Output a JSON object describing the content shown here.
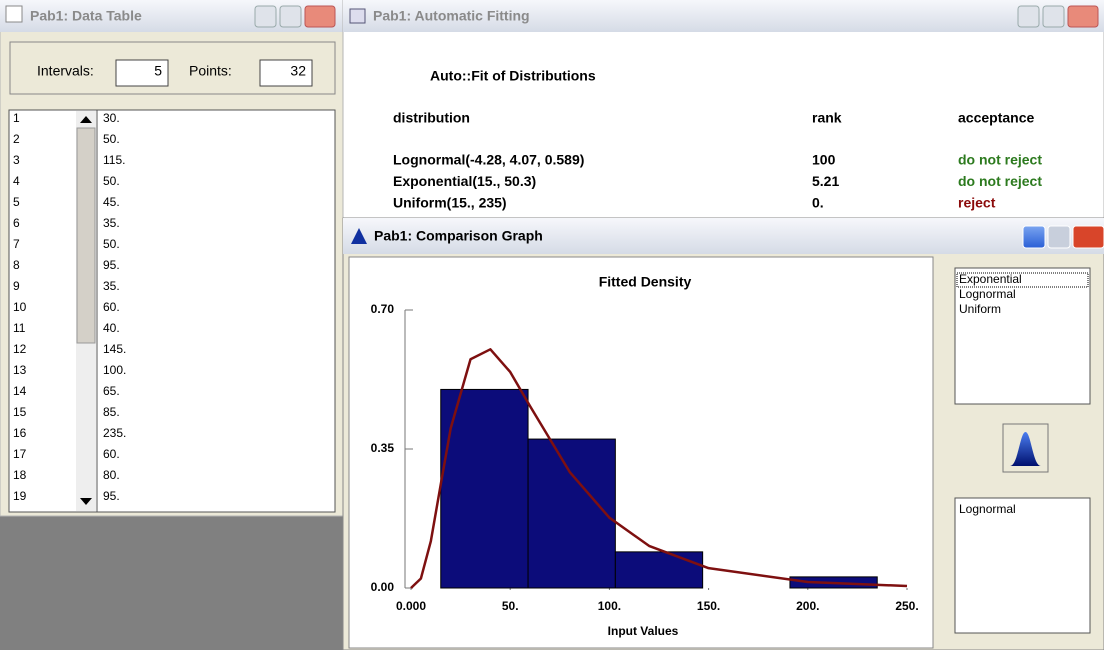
{
  "data_table": {
    "title": "Pab1: Data Table",
    "intervals_label": "Intervals:",
    "intervals": 5,
    "points_label": "Points:",
    "points": 32,
    "rows": [
      [
        "1",
        "30."
      ],
      [
        "2",
        "50."
      ],
      [
        "3",
        "115."
      ],
      [
        "4",
        "50."
      ],
      [
        "5",
        "45."
      ],
      [
        "6",
        "35."
      ],
      [
        "7",
        "50."
      ],
      [
        "8",
        "95."
      ],
      [
        "9",
        "35."
      ],
      [
        "10",
        "60."
      ],
      [
        "11",
        "40."
      ],
      [
        "12",
        "145."
      ],
      [
        "13",
        "100."
      ],
      [
        "14",
        "65."
      ],
      [
        "15",
        "85."
      ],
      [
        "16",
        "235."
      ],
      [
        "17",
        "60."
      ],
      [
        "18",
        "80."
      ],
      [
        "19",
        "95."
      ]
    ]
  },
  "auto_fit": {
    "title": "Pab1: Automatic Fitting",
    "heading": "Auto::Fit of Distributions",
    "columns": [
      "distribution",
      "rank",
      "acceptance"
    ],
    "rows": [
      {
        "distribution": "Lognormal(-4.28, 4.07, 0.589)",
        "rank": "100",
        "acceptance": "do not reject",
        "color": "#2c7a1e"
      },
      {
        "distribution": "Exponential(15., 50.3)",
        "rank": "5.21",
        "acceptance": "do not reject",
        "color": "#2c7a1e"
      },
      {
        "distribution": "Uniform(15., 235)",
        "rank": "0.",
        "acceptance": "reject",
        "color": "#8b0a0a"
      }
    ]
  },
  "comparison": {
    "title": "Pab1: Comparison Graph",
    "list": [
      "Exponential",
      "Lognormal",
      "Uniform"
    ],
    "selected": [
      "Lognormal"
    ]
  },
  "chart_data": {
    "type": "histogram",
    "title": "Fitted Density",
    "x_label": "Input Values",
    "bins": [
      15,
      59,
      103,
      147,
      191,
      235
    ],
    "values": [
      0.5,
      0.375,
      0.091,
      0,
      0.028
    ],
    "color": "#0c0c7a",
    "series": [
      {
        "name": "Lognormal",
        "color": "#7e1010",
        "x": [
          0,
          5,
          10,
          15,
          20,
          30,
          40,
          50,
          60,
          80,
          100,
          120,
          150,
          200,
          250
        ],
        "values": [
          0,
          0.024,
          0.118,
          0.261,
          0.402,
          0.576,
          0.601,
          0.544,
          0.458,
          0.292,
          0.177,
          0.106,
          0.05,
          0.015,
          0.005
        ]
      }
    ],
    "xlim": [
      0,
      250
    ],
    "xticks": [
      {
        "value": 0,
        "label": "0.000"
      },
      {
        "value": 50,
        "label": "50."
      },
      {
        "value": 100,
        "label": "100."
      },
      {
        "value": 150,
        "label": "150."
      },
      {
        "value": 200,
        "label": "200."
      },
      {
        "value": 250,
        "label": "250."
      }
    ],
    "ylim": [
      0,
      0.7
    ],
    "yticks": [
      {
        "value": 0,
        "label": "0.00"
      },
      {
        "value": 0.35,
        "label": "0.35"
      },
      {
        "value": 0.7,
        "label": "0.70"
      }
    ]
  }
}
